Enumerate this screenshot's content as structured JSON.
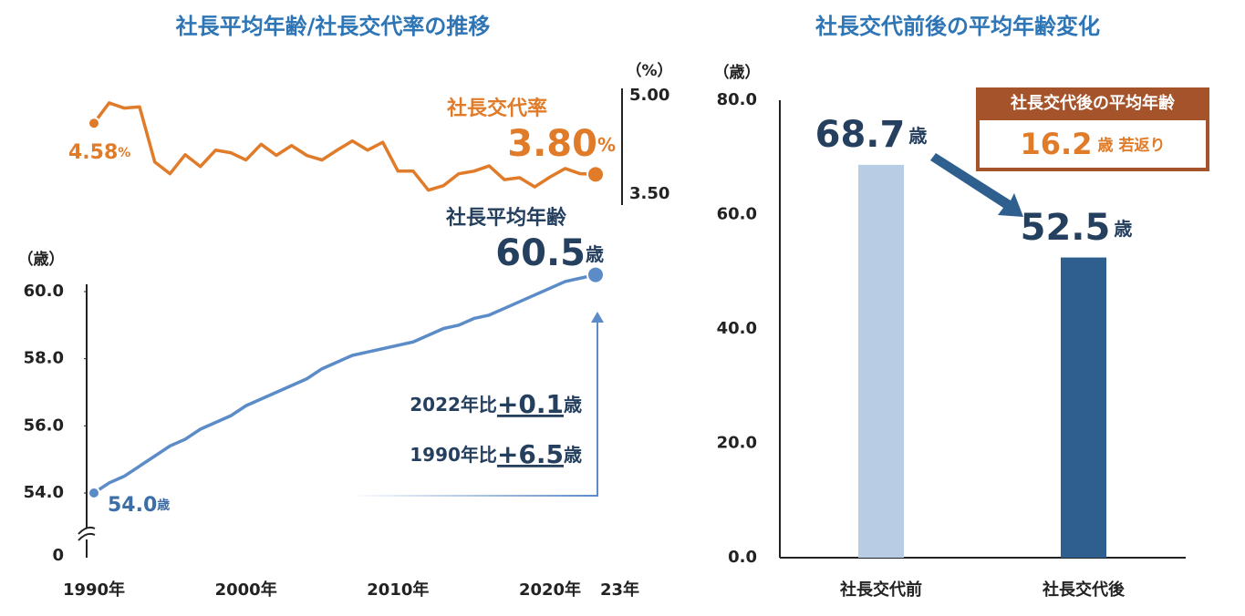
{
  "chart_data": [
    {
      "type": "line",
      "title": "社長平均年齢/社長交代率の推移",
      "x": [
        1990,
        1991,
        1992,
        1993,
        1994,
        1995,
        1996,
        1997,
        1998,
        1999,
        2000,
        2001,
        2002,
        2003,
        2004,
        2005,
        2006,
        2007,
        2008,
        2009,
        2010,
        2011,
        2012,
        2013,
        2014,
        2015,
        2016,
        2017,
        2018,
        2019,
        2020,
        2021,
        2022,
        2023
      ],
      "xlim": [
        1990,
        2023
      ],
      "xticks": [
        {
          "value": 1990,
          "label": "1990年"
        },
        {
          "value": 2000,
          "label": "2000年"
        },
        {
          "value": 2010,
          "label": "2010年"
        },
        {
          "value": 2020,
          "label": "2020年"
        },
        {
          "value": 2023,
          "label": "23年"
        }
      ],
      "ylabel": "（歳）",
      "ylim": [
        54,
        60
      ],
      "yticks": [
        {
          "value": 54,
          "label": "54.0"
        },
        {
          "value": 56,
          "label": "56.0"
        },
        {
          "value": 58,
          "label": "58.0"
        },
        {
          "value": 60,
          "label": "60.0"
        }
      ],
      "ybreak_tick": 0,
      "y2label": "（%）",
      "y2lim": [
        3.5,
        5.0
      ],
      "y2ticks": [
        {
          "value": 3.5,
          "label": "3.50"
        },
        {
          "value": 5.0,
          "label": "5.00"
        }
      ],
      "series": [
        {
          "name": "社長交代率",
          "color": "#e07b2a",
          "axis": "y2",
          "value_unit": "%",
          "values": [
            4.58,
            4.89,
            4.81,
            4.83,
            3.99,
            3.81,
            4.1,
            3.92,
            4.17,
            4.13,
            4.02,
            4.26,
            4.09,
            4.24,
            4.09,
            4.02,
            4.17,
            4.31,
            4.17,
            4.29,
            3.85,
            3.85,
            3.56,
            3.63,
            3.81,
            3.85,
            3.93,
            3.72,
            3.75,
            3.61,
            3.76,
            3.89,
            3.81,
            3.8
          ],
          "value_labels": [
            "4.58",
            null,
            null,
            null,
            null,
            null,
            null,
            null,
            null,
            null,
            null,
            null,
            null,
            null,
            null,
            null,
            null,
            null,
            null,
            null,
            null,
            null,
            null,
            null,
            null,
            null,
            null,
            null,
            null,
            null,
            null,
            null,
            null,
            "3.80"
          ]
        },
        {
          "name": "社長平均年齢",
          "color": "#5b8cc8",
          "value_unit": "歳",
          "values": [
            54.0,
            54.3,
            54.5,
            54.8,
            55.1,
            55.4,
            55.6,
            55.9,
            56.1,
            56.3,
            56.6,
            56.8,
            57.0,
            57.2,
            57.4,
            57.7,
            57.9,
            58.1,
            58.2,
            58.3,
            58.4,
            58.5,
            58.7,
            58.9,
            59.0,
            59.2,
            59.3,
            59.5,
            59.7,
            59.9,
            60.1,
            60.3,
            60.4,
            60.5
          ],
          "value_labels": [
            "54.0",
            null,
            null,
            null,
            null,
            null,
            null,
            null,
            null,
            null,
            null,
            null,
            null,
            null,
            null,
            null,
            null,
            null,
            null,
            null,
            null,
            null,
            null,
            null,
            null,
            null,
            null,
            null,
            null,
            null,
            null,
            null,
            null,
            "60.5"
          ]
        }
      ],
      "annotations": [
        {
          "text": "2022年比",
          "change": "+0.1",
          "unit": "歳"
        },
        {
          "text": "1990年比",
          "change": "+6.5",
          "unit": "歳"
        }
      ]
    },
    {
      "type": "bar",
      "title": "社長交代前後の平均年齢変化",
      "categories": [
        "社長交代前",
        "社長交代後"
      ],
      "values": [
        68.7,
        52.5
      ],
      "value_labels": [
        "68.7",
        "52.5"
      ],
      "value_unit": "歳",
      "colors": [
        "#b8cce4",
        "#2f5f8f"
      ],
      "ylabel": "（歳）",
      "ylim": [
        0,
        80
      ],
      "yticks": [
        {
          "value": 0,
          "label": "0.0"
        },
        {
          "value": 20,
          "label": "20.0"
        },
        {
          "value": 40,
          "label": "40.0"
        },
        {
          "value": 60,
          "label": "60.0"
        },
        {
          "value": 80,
          "label": "80.0"
        }
      ],
      "callout": {
        "title": "社長交代後の平均年齢",
        "value": "16.2",
        "unit": "歳",
        "text": "若返り"
      }
    }
  ]
}
